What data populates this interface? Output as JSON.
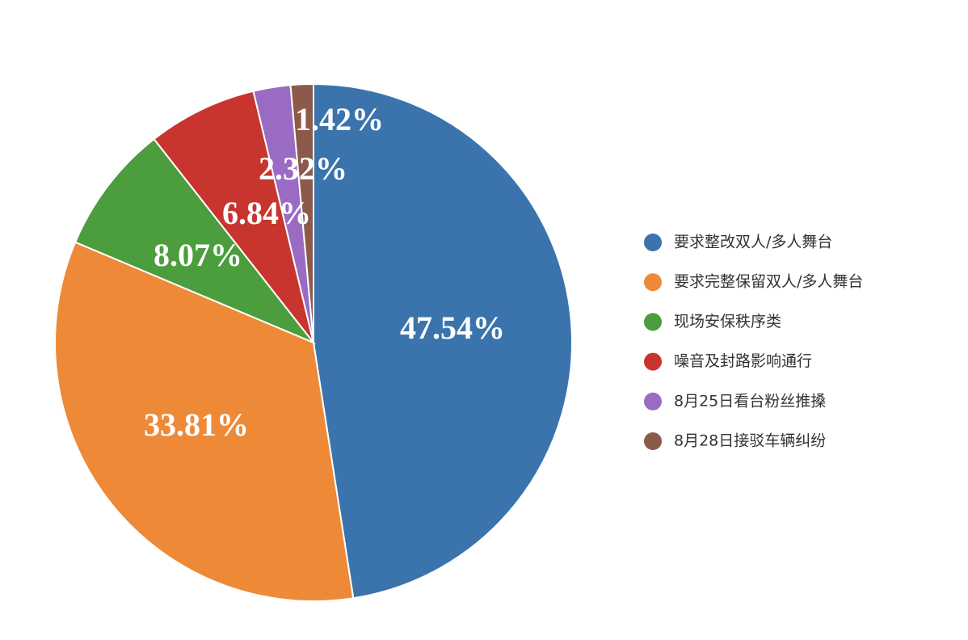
{
  "chart_data": {
    "type": "pie",
    "categories": [
      "要求整改双人/多人舞台",
      "要求完整保留双人/多人舞台",
      "现场安保秩序类",
      "噪音及封路影响通行",
      "8月25日看台粉丝推搡",
      "8月28日接驳车辆纠纷"
    ],
    "values": [
      47.54,
      33.81,
      8.07,
      6.84,
      2.32,
      1.42
    ],
    "value_labels": [
      "47.54%",
      "33.81%",
      "8.07%",
      "6.84%",
      "2.32%",
      "1.42%"
    ],
    "colors": [
      "#3b74ac",
      "#ee8a37",
      "#4b9d3e",
      "#c8352f",
      "#9a6bc3",
      "#8c5a4b"
    ],
    "legend": "right"
  }
}
